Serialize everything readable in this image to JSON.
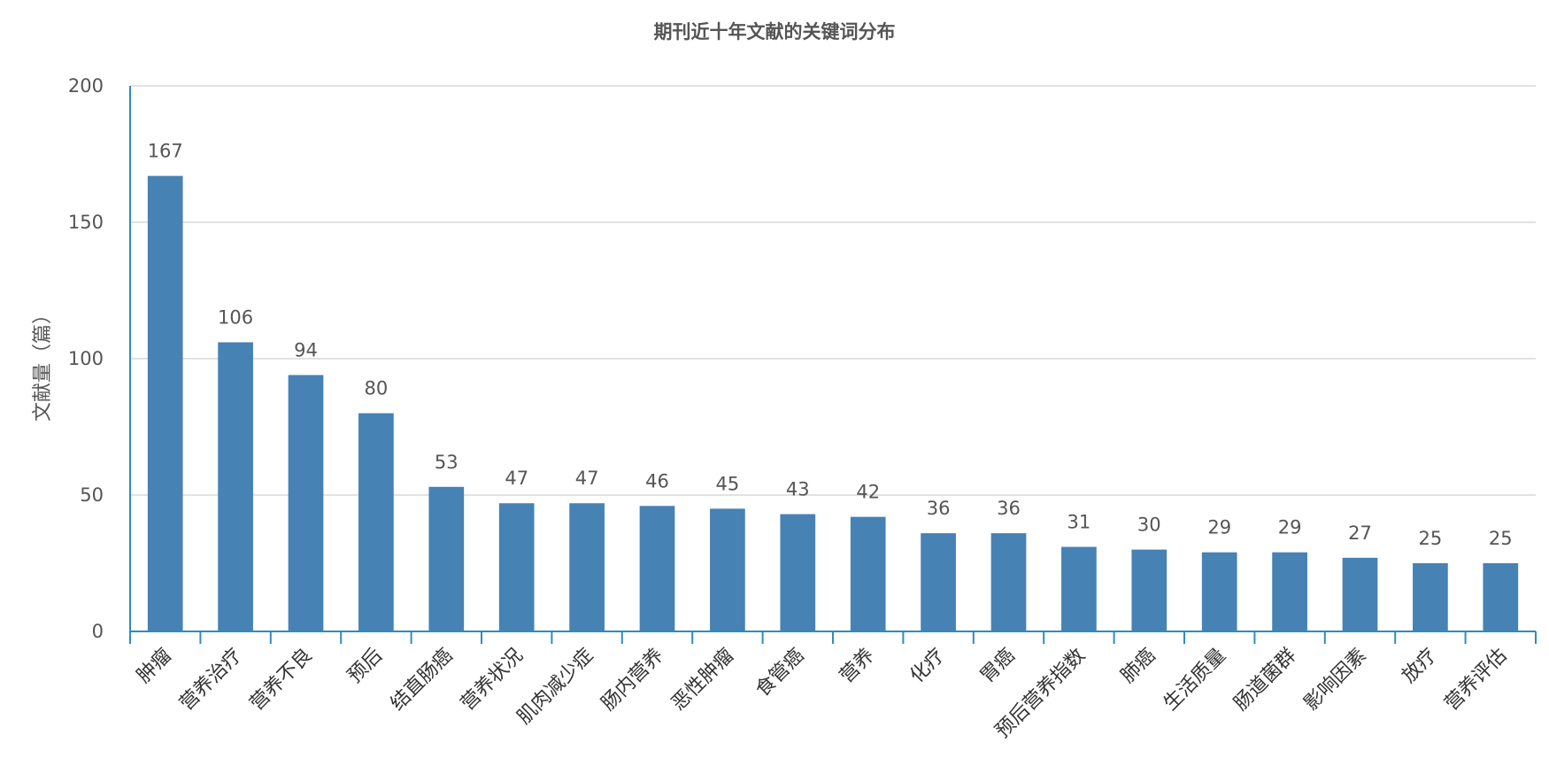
{
  "chart_data": {
    "type": "bar",
    "title": "期刊近十年文献的关键词分布",
    "xlabel": "",
    "ylabel": "文献量（篇）",
    "ylim": [
      0,
      200
    ],
    "yticks": [
      0,
      50,
      100,
      150,
      200
    ],
    "grid": true,
    "bar_color": "#4682b4",
    "axis_color": "#2e8bc0",
    "categories": [
      "肿瘤",
      "营养治疗",
      "营养不良",
      "预后",
      "结直肠癌",
      "营养状况",
      "肌肉减少症",
      "肠内营养",
      "恶性肿瘤",
      "食管癌",
      "营养",
      "化疗",
      "胃癌",
      "预后营养指数",
      "肺癌",
      "生活质量",
      "肠道菌群",
      "影响因素",
      "放疗",
      "营养评估"
    ],
    "values": [
      167,
      106,
      94,
      80,
      53,
      47,
      47,
      46,
      45,
      43,
      42,
      36,
      36,
      31,
      30,
      29,
      29,
      27,
      25,
      25
    ]
  }
}
